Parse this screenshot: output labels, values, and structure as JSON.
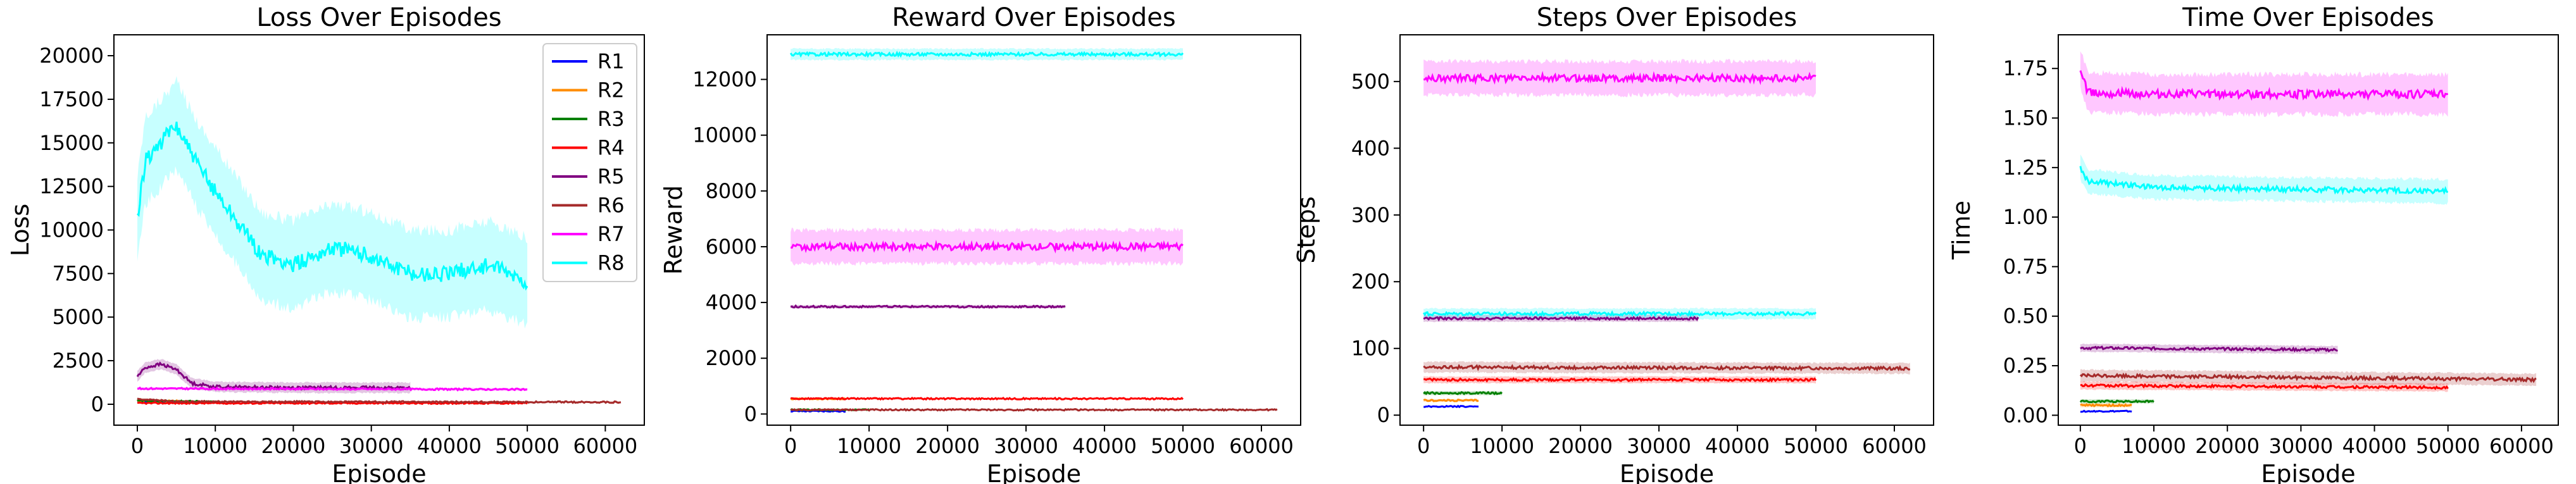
{
  "colors": {
    "R1": "#0000ff",
    "R2": "#ff8c00",
    "R3": "#008000",
    "R4": "#ff0000",
    "R5": "#800080",
    "R6": "#a52a2a",
    "R7": "#ff00ff",
    "R8": "#00ffff"
  },
  "legend": [
    "R1",
    "R2",
    "R3",
    "R4",
    "R5",
    "R6",
    "R7",
    "R8"
  ],
  "chart_data": [
    {
      "type": "line",
      "title": "Loss Over Episodes",
      "xlabel": "Episode",
      "ylabel": "Loss",
      "xlim": [
        -3000,
        65000
      ],
      "ylim": [
        -1200,
        21200
      ],
      "xticks": [
        0,
        10000,
        20000,
        30000,
        40000,
        50000,
        60000
      ],
      "yticks": [
        0,
        2500,
        5000,
        7500,
        10000,
        12500,
        15000,
        17500,
        20000
      ],
      "legend_position": "top-right",
      "series": [
        {
          "name": "R1",
          "x": [
            0,
            7000
          ],
          "y": [
            150,
            150
          ],
          "band": 0
        },
        {
          "name": "R2",
          "x": [
            0,
            7000
          ],
          "y": [
            220,
            160
          ],
          "band": 50
        },
        {
          "name": "R3",
          "x": [
            0,
            10000
          ],
          "y": [
            200,
            150
          ],
          "band": 50
        },
        {
          "name": "R4",
          "x": [
            0,
            50000
          ],
          "y": [
            60,
            60
          ],
          "band": 40
        },
        {
          "name": "R5",
          "x": [
            0,
            1000,
            3000,
            5000,
            7000,
            10000,
            20000,
            35000
          ],
          "y": [
            1600,
            2100,
            2300,
            2000,
            1200,
            1000,
            950,
            950
          ],
          "band": 300
        },
        {
          "name": "R6",
          "x": [
            0,
            5000,
            62000
          ],
          "y": [
            300,
            150,
            120
          ],
          "band": 60
        },
        {
          "name": "R7",
          "x": [
            0,
            50000
          ],
          "y": [
            900,
            850
          ],
          "band": 80
        },
        {
          "name": "R8",
          "x": [
            0,
            1000,
            3000,
            5000,
            8000,
            12000,
            16000,
            20000,
            25000,
            30000,
            35000,
            40000,
            45000,
            50000
          ],
          "y": [
            10500,
            14000,
            15000,
            16000,
            13500,
            11000,
            8500,
            8000,
            9000,
            8500,
            7500,
            7500,
            8000,
            7000
          ],
          "band": 2500
        }
      ]
    },
    {
      "type": "line",
      "title": "Reward Over Episodes",
      "xlabel": "Episode",
      "ylabel": "Reward",
      "xlim": [
        -3000,
        65000
      ],
      "ylim": [
        -400,
        13600
      ],
      "xticks": [
        0,
        10000,
        20000,
        30000,
        40000,
        50000,
        60000
      ],
      "yticks": [
        0,
        2000,
        4000,
        6000,
        8000,
        10000,
        12000
      ],
      "series": [
        {
          "name": "R1",
          "x": [
            0,
            7000
          ],
          "y": [
            100,
            100
          ],
          "band": 0
        },
        {
          "name": "R2",
          "x": [
            0,
            7000
          ],
          "y": [
            550,
            550
          ],
          "band": 20
        },
        {
          "name": "R3",
          "x": [
            0,
            10000
          ],
          "y": [
            150,
            150
          ],
          "band": 20
        },
        {
          "name": "R4",
          "x": [
            0,
            50000
          ],
          "y": [
            550,
            550
          ],
          "band": 30
        },
        {
          "name": "R5",
          "x": [
            0,
            35000
          ],
          "y": [
            3850,
            3850
          ],
          "band": 60
        },
        {
          "name": "R6",
          "x": [
            0,
            62000
          ],
          "y": [
            150,
            150
          ],
          "band": 20
        },
        {
          "name": "R7",
          "x": [
            0,
            50000
          ],
          "y": [
            6000,
            6000
          ],
          "band": 600
        },
        {
          "name": "R8",
          "x": [
            0,
            50000
          ],
          "y": [
            12900,
            12900
          ],
          "band": 200
        }
      ]
    },
    {
      "type": "line",
      "title": "Steps Over Episodes",
      "xlabel": "Episode",
      "ylabel": "Steps",
      "xlim": [
        -3000,
        65000
      ],
      "ylim": [
        -15,
        570
      ],
      "xticks": [
        0,
        10000,
        20000,
        30000,
        40000,
        50000,
        60000
      ],
      "yticks": [
        0,
        100,
        200,
        300,
        400,
        500
      ],
      "series": [
        {
          "name": "R1",
          "x": [
            0,
            7000
          ],
          "y": [
            13,
            13
          ],
          "band": 0
        },
        {
          "name": "R2",
          "x": [
            0,
            7000
          ],
          "y": [
            22,
            22
          ],
          "band": 2
        },
        {
          "name": "R3",
          "x": [
            0,
            10000
          ],
          "y": [
            33,
            33
          ],
          "band": 3
        },
        {
          "name": "R4",
          "x": [
            0,
            50000
          ],
          "y": [
            53,
            53
          ],
          "band": 5
        },
        {
          "name": "R5",
          "x": [
            0,
            35000
          ],
          "y": [
            145,
            145
          ],
          "band": 5
        },
        {
          "name": "R6",
          "x": [
            0,
            62000
          ],
          "y": [
            72,
            70
          ],
          "band": 8
        },
        {
          "name": "R7",
          "x": [
            0,
            50000
          ],
          "y": [
            505,
            505
          ],
          "band": 25
        },
        {
          "name": "R8",
          "x": [
            0,
            50000
          ],
          "y": [
            152,
            152
          ],
          "band": 8
        }
      ]
    },
    {
      "type": "line",
      "title": "Time Over Episodes",
      "xlabel": "Episode",
      "ylabel": "Time",
      "xlim": [
        -3000,
        65000
      ],
      "ylim": [
        -0.05,
        1.92
      ],
      "xticks": [
        0,
        10000,
        20000,
        30000,
        40000,
        50000,
        60000
      ],
      "yticks": [
        0.0,
        0.25,
        0.5,
        0.75,
        1.0,
        1.25,
        1.5,
        1.75
      ],
      "ytick_labels": [
        "0.00",
        "0.25",
        "0.50",
        "0.75",
        "1.00",
        "1.25",
        "1.50",
        "1.75"
      ],
      "series": [
        {
          "name": "R1",
          "x": [
            0,
            7000
          ],
          "y": [
            0.02,
            0.02
          ],
          "band": 0
        },
        {
          "name": "R2",
          "x": [
            0,
            7000
          ],
          "y": [
            0.05,
            0.05
          ],
          "band": 0.01
        },
        {
          "name": "R3",
          "x": [
            0,
            10000
          ],
          "y": [
            0.07,
            0.07
          ],
          "band": 0.01
        },
        {
          "name": "R4",
          "x": [
            0,
            50000
          ],
          "y": [
            0.15,
            0.14
          ],
          "band": 0.02
        },
        {
          "name": "R5",
          "x": [
            0,
            35000
          ],
          "y": [
            0.34,
            0.33
          ],
          "band": 0.02
        },
        {
          "name": "R6",
          "x": [
            0,
            62000
          ],
          "y": [
            0.2,
            0.18
          ],
          "band": 0.03
        },
        {
          "name": "R7",
          "x": [
            0,
            1000,
            10000,
            50000
          ],
          "y": [
            1.75,
            1.63,
            1.62,
            1.62
          ],
          "band": 0.1
        },
        {
          "name": "R8",
          "x": [
            0,
            1000,
            10000,
            50000
          ],
          "y": [
            1.25,
            1.18,
            1.15,
            1.13
          ],
          "band": 0.06
        }
      ]
    }
  ]
}
